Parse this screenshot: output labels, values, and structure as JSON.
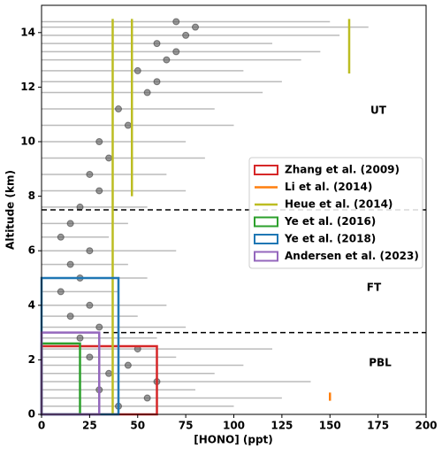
{
  "chart_data": {
    "type": "scatter",
    "x_label": "[HONO] (ppt)",
    "y_label": "Altitude (km)",
    "xlim": [
      0,
      200
    ],
    "ylim": [
      0,
      15
    ],
    "xticks": [
      0,
      25,
      50,
      75,
      100,
      125,
      150,
      175,
      200
    ],
    "yticks": [
      0,
      2,
      4,
      6,
      8,
      10,
      12,
      14
    ],
    "point_color": "#555555",
    "errorbar_color": "#bbbbbb",
    "points": {
      "y": [
        0.3,
        0.6,
        0.9,
        1.2,
        1.5,
        1.8,
        2.1,
        2.4,
        2.8,
        3.2,
        3.6,
        4.0,
        4.5,
        5.0,
        5.5,
        6.0,
        6.5,
        7.0,
        7.6,
        8.2,
        8.8,
        9.4,
        10.0,
        10.6,
        11.2,
        11.8,
        12.2,
        12.6,
        13.0,
        13.3,
        13.6,
        13.9,
        14.2,
        14.4
      ],
      "x": [
        40,
        55,
        30,
        60,
        35,
        45,
        25,
        50,
        20,
        30,
        15,
        25,
        10,
        20,
        15,
        25,
        10,
        15,
        20,
        30,
        25,
        35,
        30,
        45,
        40,
        55,
        60,
        50,
        65,
        70,
        60,
        75,
        80,
        70
      ],
      "xerr": [
        60,
        70,
        50,
        80,
        55,
        60,
        45,
        70,
        40,
        45,
        35,
        40,
        30,
        35,
        30,
        45,
        25,
        30,
        35,
        45,
        40,
        50,
        45,
        55,
        50,
        60,
        65,
        55,
        70,
        75,
        60,
        80,
        90,
        80
      ]
    },
    "boundaries": [
      3,
      7.5
    ],
    "annotations": [
      "UT",
      "FT",
      "PBL"
    ],
    "legend_loc": "center right",
    "references": [
      {
        "name": "Zhang et al. (2009)",
        "color": "#d62728",
        "shape": "box",
        "xlim": [
          0,
          60
        ],
        "ylim": [
          0,
          2.5
        ]
      },
      {
        "name": "Li et al. (2014)",
        "color": "#ff7f0e",
        "shape": "lines",
        "lines": [
          {
            "x": 150,
            "ylim": [
              0.5,
              0.8
            ]
          }
        ]
      },
      {
        "name": "Heue et al. (2014)",
        "color": "#bcbd22",
        "shape": "lines",
        "lines": [
          {
            "x": 37,
            "ylim": [
              0,
              14.5
            ]
          },
          {
            "x": 47,
            "ylim": [
              8,
              14.5
            ]
          },
          {
            "x": 160,
            "ylim": [
              12.5,
              14.5
            ]
          }
        ]
      },
      {
        "name": "Ye et al. (2016)",
        "color": "#2ca02c",
        "shape": "box",
        "xlim": [
          0,
          20
        ],
        "ylim": [
          0,
          2.6
        ]
      },
      {
        "name": "Ye et al. (2018)",
        "color": "#1f77b4",
        "shape": "box",
        "xlim": [
          0,
          40
        ],
        "ylim": [
          0,
          5
        ]
      },
      {
        "name": "Andersen et al. (2023)",
        "color": "#9467bd",
        "shape": "box",
        "xlim": [
          0,
          30
        ],
        "ylim": [
          0,
          3
        ]
      }
    ]
  }
}
